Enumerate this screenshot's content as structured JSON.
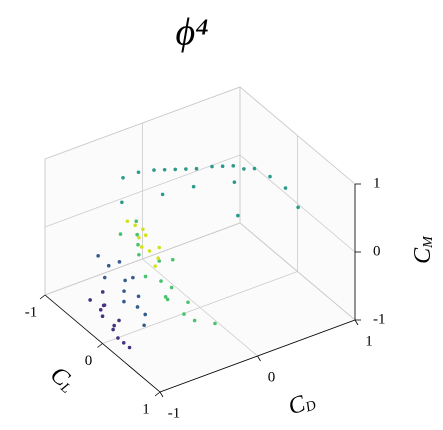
{
  "chart_data": {
    "type": "scatter3d",
    "title": "ϕ⁴",
    "xlabel": {
      "text": "C",
      "sub": "L"
    },
    "ylabel": {
      "text": "C",
      "sub": "D"
    },
    "zlabel": {
      "text": "C",
      "sub": "M"
    },
    "xlim": [
      -1,
      1
    ],
    "xticks": [
      -1,
      0,
      1
    ],
    "ylim": [
      -1,
      1
    ],
    "yticks": [
      -1,
      0,
      1
    ],
    "zlim": [
      -1,
      1
    ],
    "zticks": [
      -1,
      0,
      1
    ],
    "grid": true,
    "series": [
      {
        "color": "#46327e",
        "x": [
          -0.3,
          -0.2,
          -0.1,
          0,
          0.1,
          0.2,
          -0.25,
          -0.05,
          0.05,
          0.15,
          -0.15,
          0.25
        ],
        "y": [
          -0.95,
          -0.9,
          -0.92,
          -0.88,
          -0.95,
          -0.9,
          -0.85,
          -0.97,
          -0.86,
          -0.93,
          -0.9,
          -0.87
        ],
        "z": [
          -0.6,
          -0.7,
          -0.55,
          -0.8,
          -0.75,
          -0.9,
          -0.5,
          -0.65,
          -0.7,
          -0.85,
          -0.6,
          -0.95
        ]
      },
      {
        "color": "#365c8d",
        "x": [
          -0.5,
          -0.4,
          -0.3,
          -0.2,
          -0.1,
          0,
          0.1,
          0.2,
          0.3,
          -0.35,
          -0.15,
          0.05
        ],
        "y": [
          -0.75,
          -0.7,
          -0.8,
          -0.65,
          -0.72,
          -0.78,
          -0.7,
          -0.68,
          -0.75,
          -0.62,
          -0.6,
          -0.66
        ],
        "z": [
          -0.2,
          -0.3,
          -0.35,
          -0.4,
          -0.45,
          -0.5,
          -0.55,
          -0.6,
          -0.65,
          -0.25,
          -0.35,
          -0.45
        ]
      },
      {
        "color": "#2a9a8a",
        "x": [
          -1,
          -0.9,
          -0.8,
          -0.7,
          -0.6,
          -0.5,
          -0.4,
          -0.3,
          -0.2,
          -0.1,
          0,
          0.1,
          0.2,
          0.3,
          -0.85,
          -0.65,
          -0.45,
          -0.25,
          0.15,
          0.35
        ],
        "y": [
          -0.2,
          -0.1,
          0,
          0.05,
          0.1,
          0.15,
          0.2,
          0.3,
          0.35,
          0.4,
          0.45,
          0.5,
          0.6,
          0.7,
          -0.3,
          0,
          0.2,
          0.5,
          0.3,
          0.8
        ],
        "z": [
          0.3,
          0.4,
          0.45,
          0.5,
          0.55,
          0.6,
          0.65,
          0.7,
          0.75,
          0.8,
          0.8,
          0.85,
          0.75,
          0.6,
          0.1,
          0.2,
          0.35,
          0.4,
          0.3,
          0.3
        ]
      },
      {
        "color": "#4ac16d",
        "x": [
          -0.6,
          -0.5,
          -0.4,
          -0.3,
          -0.2,
          -0.1,
          0,
          0.1,
          0.2,
          0.3,
          0.4,
          0.5,
          -0.45,
          -0.05,
          0.25,
          0.6
        ],
        "y": [
          -0.3,
          -0.35,
          -0.4,
          -0.45,
          -0.3,
          -0.5,
          -0.4,
          -0.35,
          -0.45,
          -0.3,
          -0.4,
          -0.35,
          -0.55,
          -0.25,
          -0.5,
          -0.2
        ],
        "z": [
          0,
          -0.1,
          -0.15,
          -0.2,
          -0.3,
          -0.35,
          -0.4,
          -0.45,
          -0.5,
          -0.55,
          -0.6,
          -0.65,
          0.05,
          -0.2,
          -0.4,
          -0.7
        ]
      },
      {
        "color": "#d2e21b",
        "x": [
          -0.5,
          -0.45,
          -0.4,
          -0.35,
          -0.3,
          -0.25,
          -0.2,
          -0.15,
          -0.1,
          -0.05
        ],
        "y": [
          -0.45,
          -0.4,
          -0.35,
          -0.42,
          -0.38,
          -0.45,
          -0.4,
          -0.33,
          -0.37,
          -0.43
        ],
        "z": [
          0.15,
          0.1,
          0.05,
          0,
          0.05,
          -0.05,
          -0.1,
          -0.05,
          -0.15,
          -0.2
        ]
      }
    ]
  }
}
